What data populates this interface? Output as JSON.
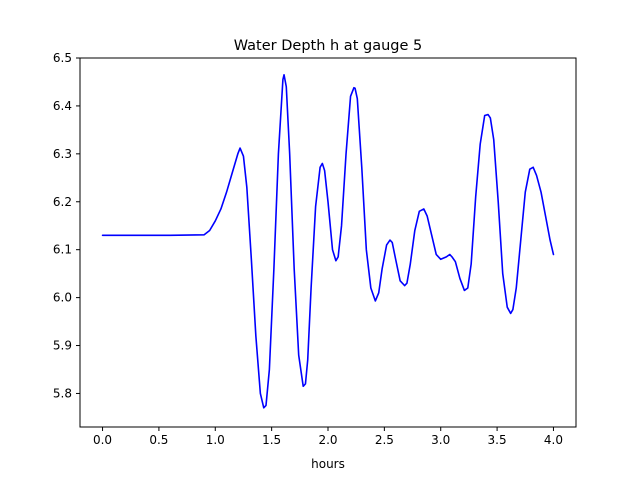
{
  "chart_data": {
    "type": "line",
    "title": "Water Depth h at gauge 5",
    "xlabel": "hours",
    "ylabel": "",
    "xlim": [
      -0.2,
      4.2
    ],
    "ylim": [
      5.73,
      6.5
    ],
    "xticks": [
      0.0,
      0.5,
      1.0,
      1.5,
      2.0,
      2.5,
      3.0,
      3.5,
      4.0
    ],
    "xtick_labels": [
      "0.0",
      "0.5",
      "1.0",
      "1.5",
      "2.0",
      "2.5",
      "3.0",
      "3.5",
      "4.0"
    ],
    "yticks": [
      5.8,
      5.9,
      6.0,
      6.1,
      6.2,
      6.3,
      6.4,
      6.5
    ],
    "ytick_labels": [
      "5.8",
      "5.9",
      "6.0",
      "6.1",
      "6.2",
      "6.3",
      "6.4",
      "6.5"
    ],
    "grid": false,
    "series": [
      {
        "color": "#0000ff",
        "x": [
          0.0,
          0.3,
          0.6,
          0.9,
          0.95,
          1.0,
          1.05,
          1.1,
          1.15,
          1.2,
          1.22,
          1.25,
          1.28,
          1.32,
          1.36,
          1.4,
          1.43,
          1.45,
          1.48,
          1.52,
          1.56,
          1.6,
          1.61,
          1.63,
          1.66,
          1.7,
          1.74,
          1.78,
          1.8,
          1.82,
          1.85,
          1.89,
          1.93,
          1.95,
          1.97,
          2.0,
          2.04,
          2.07,
          2.09,
          2.12,
          2.16,
          2.2,
          2.23,
          2.24,
          2.26,
          2.3,
          2.34,
          2.38,
          2.42,
          2.45,
          2.48,
          2.52,
          2.55,
          2.57,
          2.6,
          2.64,
          2.68,
          2.7,
          2.73,
          2.77,
          2.81,
          2.85,
          2.88,
          2.92,
          2.96,
          3.0,
          3.05,
          3.08,
          3.1,
          3.13,
          3.17,
          3.21,
          3.24,
          3.27,
          3.31,
          3.35,
          3.39,
          3.42,
          3.44,
          3.47,
          3.51,
          3.55,
          3.59,
          3.62,
          3.64,
          3.67,
          3.71,
          3.75,
          3.79,
          3.82,
          3.85,
          3.89,
          3.93,
          3.97,
          4.0
        ],
        "values": [
          6.13,
          6.13,
          6.13,
          6.131,
          6.14,
          6.16,
          6.185,
          6.22,
          6.26,
          6.3,
          6.312,
          6.295,
          6.23,
          6.08,
          5.92,
          5.8,
          5.77,
          5.775,
          5.85,
          6.06,
          6.3,
          6.455,
          6.465,
          6.44,
          6.3,
          6.06,
          5.88,
          5.815,
          5.82,
          5.87,
          6.02,
          6.19,
          6.272,
          6.28,
          6.265,
          6.2,
          6.1,
          6.077,
          6.085,
          6.15,
          6.3,
          6.42,
          6.438,
          6.437,
          6.415,
          6.27,
          6.1,
          6.02,
          5.993,
          6.01,
          6.06,
          6.11,
          6.12,
          6.115,
          6.08,
          6.035,
          6.025,
          6.03,
          6.07,
          6.14,
          6.18,
          6.185,
          6.17,
          6.13,
          6.09,
          6.08,
          6.085,
          6.09,
          6.085,
          6.075,
          6.04,
          6.015,
          6.02,
          6.07,
          6.21,
          6.32,
          6.38,
          6.382,
          6.375,
          6.33,
          6.2,
          6.05,
          5.98,
          5.967,
          5.975,
          6.02,
          6.12,
          6.22,
          6.268,
          6.272,
          6.255,
          6.22,
          6.17,
          6.12,
          6.09
        ]
      }
    ]
  }
}
